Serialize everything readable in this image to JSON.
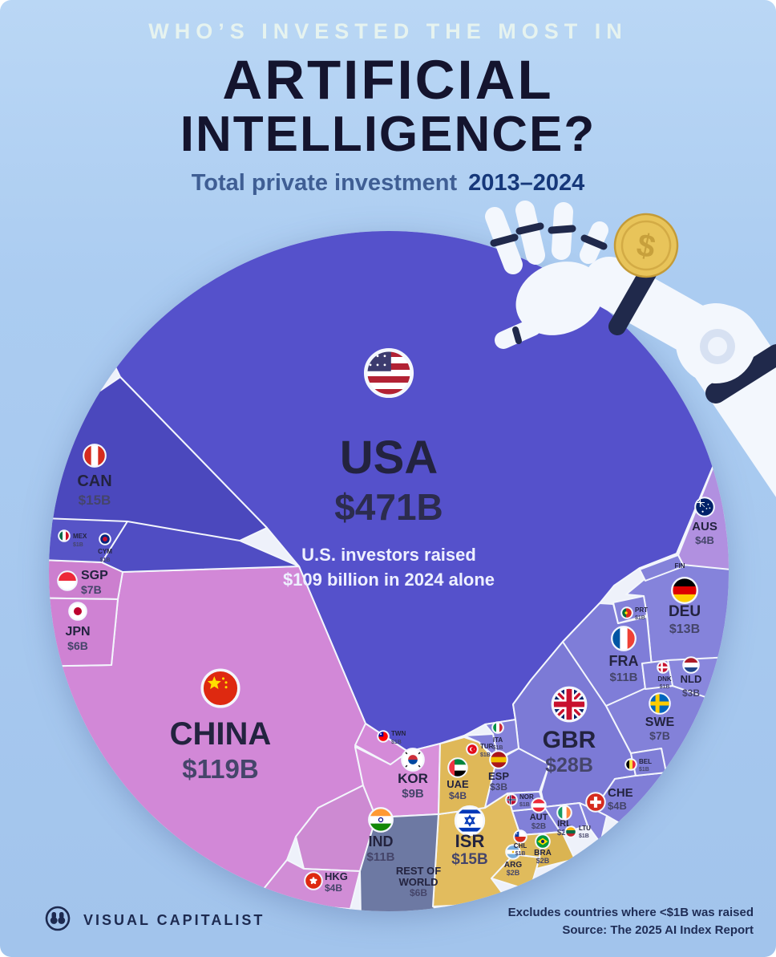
{
  "header": {
    "kicker": "WHO’S INVESTED THE MOST IN",
    "title_line1": "ARTIFICIAL",
    "title_line2": "INTELLIGENCE?",
    "subtitle": "Total private investment",
    "subtitle_years": "2013–2024"
  },
  "annotation": {
    "line1": "U.S. investors raised",
    "line2": "$109 billion in 2024 alone"
  },
  "footer": {
    "logo_icon": "binoculars-icon",
    "brand": "VISUAL CAPITALIST",
    "note_line1": "Excludes countries where <$1B was raised",
    "note_line2": "Source: The 2025 AI Index Report"
  },
  "illustrations": [
    "robot-arm-illustration",
    "dollar-coin-icon"
  ],
  "colors": {
    "background_top": "#bad7f5",
    "background_bottom": "#a2c4ec",
    "seam": "#f3f6fc",
    "label_name": "#23233f",
    "label_value": "#45456a",
    "annotation_text": "#eef0ff",
    "title_dark": "#14142e",
    "kicker_light": "#e6f3ef"
  },
  "chart_data": {
    "type": "treemap",
    "variant": "circular-voronoi",
    "title": "Who’s Invested the Most in Artificial Intelligence?",
    "subtitle": "Total private investment 2013–2024",
    "unit": "USD billions",
    "items": [
      {
        "code": "USA",
        "label": "USA",
        "value_label": "$471B",
        "value_billions": 471,
        "color": "#5551cb",
        "flag": {
          "pattern": "usa"
        }
      },
      {
        "code": "CHN",
        "label": "CHINA",
        "value_label": "$119B",
        "value_billions": 119,
        "color": "#d288d7",
        "flag": {
          "pattern": "china"
        }
      },
      {
        "code": "GBR",
        "label": "GBR",
        "value_label": "$28B",
        "value_billions": 28,
        "color": "#7c7ad6",
        "flag": {
          "pattern": "uk"
        }
      },
      {
        "code": "CAN",
        "label": "CAN",
        "value_label": "$15B",
        "value_billions": 15,
        "color": "#4b48bd",
        "flag": {
          "pattern": "v",
          "colors": [
            "#D52B1E",
            "#FFFFFF",
            "#D52B1E"
          ]
        }
      },
      {
        "code": "ISR",
        "label": "ISR",
        "value_label": "$15B",
        "value_billions": 15,
        "color": "#e2bc5e",
        "flag": {
          "pattern": "isr"
        }
      },
      {
        "code": "DEU",
        "label": "DEU",
        "value_label": "$13B",
        "value_billions": 13,
        "color": "#8583db",
        "flag": {
          "pattern": "h",
          "colors": [
            "#000000",
            "#DD0000",
            "#FFCE00"
          ]
        }
      },
      {
        "code": "IND",
        "label": "IND",
        "value_label": "$11B",
        "value_billions": 11,
        "color": "#cd8ad2",
        "flag": {
          "pattern": "ind"
        }
      },
      {
        "code": "FRA",
        "label": "FRA",
        "value_label": "$11B",
        "value_billions": 11,
        "color": "#7f7dd8",
        "flag": {
          "pattern": "v",
          "colors": [
            "#0055A4",
            "#FFFFFF",
            "#EF4135"
          ]
        }
      },
      {
        "code": "KOR",
        "label": "KOR",
        "value_label": "$9B",
        "value_billions": 9,
        "color": "#d890da",
        "flag": {
          "pattern": "kr"
        }
      },
      {
        "code": "SGP",
        "label": "SGP",
        "value_label": "$7B",
        "value_billions": 7,
        "color": "#cc7fcf",
        "flag": {
          "pattern": "h",
          "colors": [
            "#ED2939",
            "#FFFFFF"
          ]
        }
      },
      {
        "code": "SWE",
        "label": "SWE",
        "value_label": "$7B",
        "value_billions": 7,
        "color": "#8381d9",
        "flag": {
          "pattern": "cross",
          "colors": [
            "#0065BD",
            "#FECC00"
          ]
        }
      },
      {
        "code": "JPN",
        "label": "JPN",
        "value_label": "$6B",
        "value_billions": 6,
        "color": "#cf82d3",
        "flag": {
          "pattern": "disc",
          "colors": [
            "#FFFFFF",
            "#BC002D"
          ]
        }
      },
      {
        "code": "ROW",
        "label": "REST OF WORLD",
        "value_label": "$6B",
        "value_billions": 6,
        "color": "#6d79a3",
        "flag": null
      },
      {
        "code": "AUS",
        "label": "AUS",
        "value_label": "$4B",
        "value_billions": 4,
        "color": "#b190e0",
        "flag": {
          "pattern": "au"
        }
      },
      {
        "code": "CHE",
        "label": "CHE",
        "value_label": "$4B",
        "value_billions": 4,
        "color": "#807ed7",
        "flag": {
          "pattern": "plus",
          "colors": [
            "#D52B1E",
            "#FFFFFF"
          ]
        }
      },
      {
        "code": "HKG",
        "label": "HKG",
        "value_label": "$4B",
        "value_billions": 4,
        "color": "#d18dd6",
        "flag": {
          "pattern": "hk"
        }
      },
      {
        "code": "UAE",
        "label": "UAE",
        "value_label": "$4B",
        "value_billions": 4,
        "color": "#dfb858",
        "flag": {
          "pattern": "uae"
        }
      },
      {
        "code": "NLD",
        "label": "NLD",
        "value_label": "$3B",
        "value_billions": 3,
        "color": "#8987dd",
        "flag": {
          "pattern": "h",
          "colors": [
            "#AE1C28",
            "#FFFFFF",
            "#21468B"
          ]
        }
      },
      {
        "code": "ESP",
        "label": "ESP",
        "value_label": "$3B",
        "value_billions": 3,
        "color": "#8280d9",
        "flag": {
          "pattern": "h",
          "colors": [
            "#AA151B",
            "#F1BF00",
            "#AA151B"
          ]
        }
      },
      {
        "code": "AUT",
        "label": "AUT",
        "value_label": "$2B",
        "value_billions": 2,
        "color": "#8180d8",
        "flag": {
          "pattern": "h",
          "colors": [
            "#ED2939",
            "#FFFFFF",
            "#ED2939"
          ]
        }
      },
      {
        "code": "IRL",
        "label": "IRL",
        "value_label": "$2B",
        "value_billions": 2,
        "color": "#8583db",
        "flag": {
          "pattern": "v",
          "colors": [
            "#169B62",
            "#FFFFFF",
            "#FF883E"
          ]
        }
      },
      {
        "code": "BRA",
        "label": "BRA",
        "value_label": "$2B",
        "value_billions": 2,
        "color": "#dab452",
        "flag": {
          "pattern": "br"
        }
      },
      {
        "code": "ARG",
        "label": "ARG",
        "value_label": "$2B",
        "value_billions": 2,
        "color": "#e0bb5c",
        "flag": {
          "pattern": "arg"
        }
      },
      {
        "code": "MEX",
        "label": "MEX",
        "value_label": "$1B",
        "value_billions": 1,
        "color": "#5754c7",
        "flag": {
          "pattern": "v",
          "colors": [
            "#006847",
            "#FFFFFF",
            "#CE1126"
          ]
        }
      },
      {
        "code": "CYM",
        "label": "CYM",
        "value_label": "$1B",
        "value_billions": 1,
        "color": "#504dc3",
        "flag": {
          "pattern": "disc",
          "colors": [
            "#00247D",
            "#C8102E"
          ]
        }
      },
      {
        "code": "TWN",
        "label": "TWN",
        "value_label": "$1B",
        "value_billions": 1,
        "color": "#d48ad8",
        "flag": {
          "pattern": "tw"
        }
      },
      {
        "code": "ITA",
        "label": "ITA",
        "value_label": "$1B",
        "value_billions": 1,
        "color": "#8482da",
        "flag": {
          "pattern": "v",
          "colors": [
            "#009246",
            "#FFFFFF",
            "#CE2B37"
          ]
        }
      },
      {
        "code": "TUR",
        "label": "TUR",
        "value_label": "$1B",
        "value_billions": 1,
        "color": "#8482da",
        "flag": {
          "pattern": "crescent",
          "colors": [
            "#E30A17",
            "#FFFFFF"
          ]
        }
      },
      {
        "code": "NOR",
        "label": "NOR",
        "value_label": "$1B",
        "value_billions": 1,
        "color": "#8281d9",
        "flag": {
          "pattern": "cross",
          "colors": [
            "#BA0C2F",
            "#FFFFFF",
            "#00205B"
          ]
        }
      },
      {
        "code": "CHL",
        "label": "CHL",
        "value_label": "$1B",
        "value_billions": 1,
        "color": "#dcb85a",
        "flag": {
          "pattern": "cl"
        }
      },
      {
        "code": "LTU",
        "label": "LTU",
        "value_label": "$1B",
        "value_billions": 1,
        "color": "#8684dc",
        "flag": {
          "pattern": "h",
          "colors": [
            "#FDB913",
            "#006A44",
            "#C1272D"
          ]
        }
      },
      {
        "code": "BEL",
        "label": "BEL",
        "value_label": "$1B",
        "value_billions": 1,
        "color": "#7f7ed7",
        "flag": {
          "pattern": "v",
          "colors": [
            "#000000",
            "#FAE042",
            "#ED2939"
          ]
        }
      },
      {
        "code": "DNK",
        "label": "DNK",
        "value_label": "$1B",
        "value_billions": 1,
        "color": "#8482da",
        "flag": {
          "pattern": "cross",
          "colors": [
            "#C8102E",
            "#FFFFFF"
          ]
        }
      },
      {
        "code": "PRT",
        "label": "PRT",
        "value_label": "$1B",
        "value_billions": 1,
        "color": "#8381d9",
        "flag": {
          "pattern": "pt"
        }
      },
      {
        "code": "FIN",
        "label": "FIN",
        "value_label": "",
        "value_billions": 1,
        "color": "#8482da",
        "flag": null
      }
    ]
  }
}
